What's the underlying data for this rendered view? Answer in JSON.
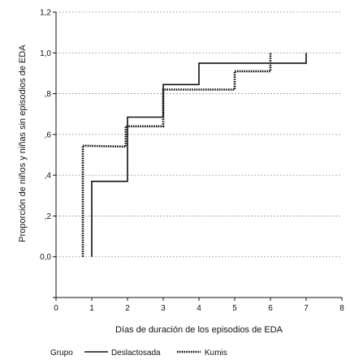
{
  "chart_data": {
    "type": "line",
    "step": true,
    "title": "",
    "xlabel": "Días de duración de los episodios de EDA",
    "ylabel": "Proporción de niños y niñas sin episodios de EDA",
    "xlim": [
      0,
      8
    ],
    "ylim": [
      -0.2,
      1.2
    ],
    "x_ticks": [
      0,
      1,
      2,
      3,
      4,
      5,
      6,
      7,
      8
    ],
    "y_ticks": [
      -0.2,
      0.0,
      0.2,
      0.4,
      0.6,
      0.8,
      1.0,
      1.2
    ],
    "y_tick_labels": [
      "",
      "0,0",
      ",2",
      ",4",
      ",6",
      ",8",
      "1,0",
      "1,2"
    ],
    "grid": "horizontal dashed",
    "legend_title": "Grupo",
    "legend_position": "bottom",
    "series": [
      {
        "name": "Deslactosada",
        "style": "solid",
        "color": "#111111",
        "points": [
          [
            1,
            0.0
          ],
          [
            1,
            0.37
          ],
          [
            2,
            0.37
          ],
          [
            2,
            0.685
          ],
          [
            3,
            0.685
          ],
          [
            3,
            0.845
          ],
          [
            4,
            0.845
          ],
          [
            4,
            0.95
          ],
          [
            7,
            0.95
          ],
          [
            7,
            1.0
          ]
        ]
      },
      {
        "name": "Kumis",
        "style": "dotted",
        "color": "#111111",
        "points": [
          [
            0.75,
            0.0
          ],
          [
            0.75,
            0.545
          ],
          [
            1.95,
            0.54
          ],
          [
            1.95,
            0.64
          ],
          [
            3,
            0.64
          ],
          [
            3,
            0.82
          ],
          [
            5,
            0.82
          ],
          [
            5,
            0.91
          ],
          [
            6,
            0.91
          ],
          [
            6,
            1.0
          ]
        ]
      }
    ]
  }
}
